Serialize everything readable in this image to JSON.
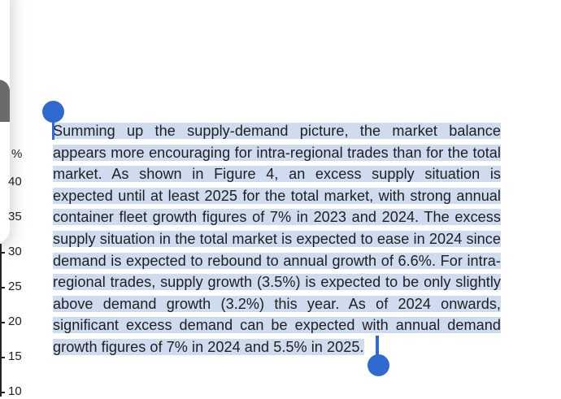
{
  "chart_fragment": {
    "unit_label": "%",
    "y_ticks": [
      "40",
      "35",
      "30",
      "25",
      "20",
      "15",
      "10"
    ]
  },
  "selection": {
    "text": "Summing up the supply-demand picture, the market balance appears more encouraging for intra-regional trades than for the total market. As shown in Figure 4, an excess supply situation is expected until at least 2025 for the total market, with strong annual container fleet growth figures of 7% in 2023 and 2024. The excess supply situation in the total market is expected to ease in 2024 since demand is expected to rebound to annual growth of 6.6%. For intra-regional trades, supply growth (3.5%) is expected to be only slightly above demand growth (3.2%) this year. As of 2024 onwards, significant excess demand can be expected with annual demand growth figures of 7% in 2024 and 5.5% in 2025.",
    "highlight_color": "#cfdcf0",
    "handle_color": "#2f6ad1"
  }
}
